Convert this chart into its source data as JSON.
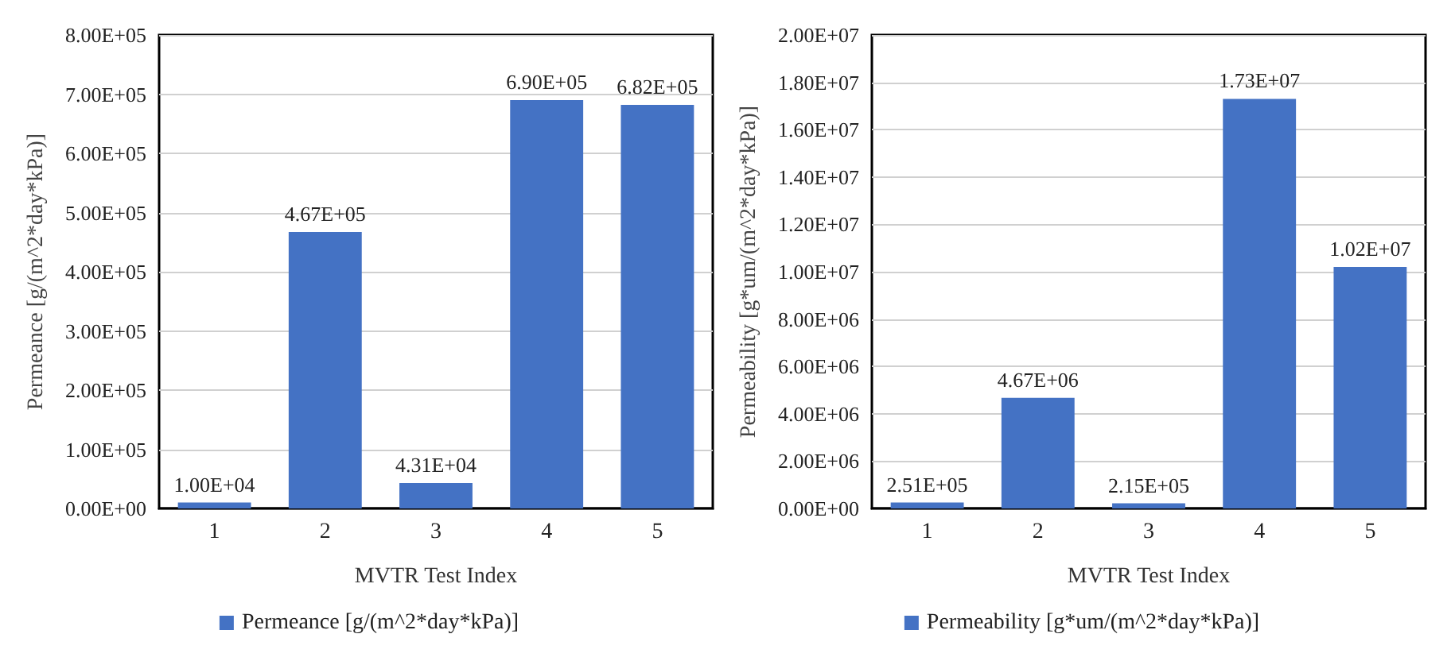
{
  "chart_data": [
    {
      "type": "bar",
      "xlabel": "MVTR Test Index",
      "ylabel": "Permeance [g/(m^2*day*kPa)]",
      "categories": [
        "1",
        "2",
        "3",
        "4",
        "5"
      ],
      "series": [
        {
          "name": "Permeance [g/(m^2*day*kPa)]",
          "color": "#4472c4",
          "values": [
            10000,
            467000,
            43100,
            690000,
            682000
          ],
          "value_labels": [
            "1.00E+04",
            "4.67E+05",
            "4.31E+04",
            "6.90E+05",
            "6.82E+05"
          ]
        }
      ],
      "ylim": [
        0,
        800000
      ],
      "yticks": [
        {
          "value": 0,
          "label": "0.00E+00"
        },
        {
          "value": 100000,
          "label": "1.00E+05"
        },
        {
          "value": 200000,
          "label": "2.00E+05"
        },
        {
          "value": 300000,
          "label": "3.00E+05"
        },
        {
          "value": 400000,
          "label": "4.00E+05"
        },
        {
          "value": 500000,
          "label": "5.00E+05"
        },
        {
          "value": 600000,
          "label": "6.00E+05"
        },
        {
          "value": 700000,
          "label": "7.00E+05"
        },
        {
          "value": 800000,
          "label": "8.00E+05"
        }
      ],
      "grid": "y",
      "legend": "bottom"
    },
    {
      "type": "bar",
      "xlabel": "MVTR Test Index",
      "ylabel": "Permeability [g*um/(m^2*day*kPa)]",
      "categories": [
        "1",
        "2",
        "3",
        "4",
        "5"
      ],
      "series": [
        {
          "name": "Permeability [g*um/(m^2*day*kPa)]",
          "color": "#4472c4",
          "values": [
            251000,
            4670000,
            215000,
            17300000,
            10200000
          ],
          "value_labels": [
            "2.51E+05",
            "4.67E+06",
            "2.15E+05",
            "1.73E+07",
            "1.02E+07"
          ]
        }
      ],
      "ylim": [
        0,
        20000000
      ],
      "yticks": [
        {
          "value": 0,
          "label": "0.00E+00"
        },
        {
          "value": 2000000,
          "label": "2.00E+06"
        },
        {
          "value": 4000000,
          "label": "4.00E+06"
        },
        {
          "value": 6000000,
          "label": "6.00E+06"
        },
        {
          "value": 8000000,
          "label": "8.00E+06"
        },
        {
          "value": 10000000,
          "label": "1.00E+07"
        },
        {
          "value": 12000000,
          "label": "1.20E+07"
        },
        {
          "value": 14000000,
          "label": "1.40E+07"
        },
        {
          "value": 16000000,
          "label": "1.60E+07"
        },
        {
          "value": 18000000,
          "label": "1.80E+07"
        },
        {
          "value": 20000000,
          "label": "2.00E+07"
        }
      ],
      "grid": "y",
      "legend": "bottom"
    }
  ]
}
